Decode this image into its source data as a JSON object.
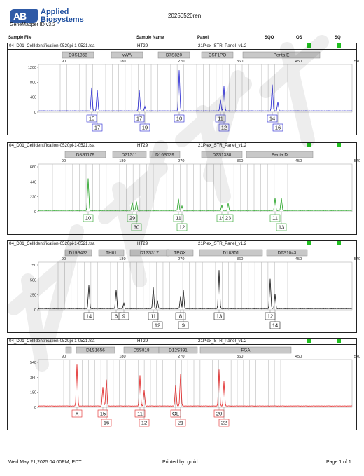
{
  "logo": {
    "line1": "Applied",
    "line2": "Biosystems",
    "mark": "AB"
  },
  "software": "GeneMapper ID v3.2",
  "doc_title": "20250520ren",
  "header_cols": {
    "sample_file": "Sample File",
    "sample_name": "Sample Name",
    "panel": "Panel",
    "sqo": "SQO",
    "os": "OS",
    "sq": "SQ"
  },
  "status_color": "#20c020",
  "panels": [
    {
      "sample_file": "04_D01_CellIdentification-0520pi-1-0521.fsa",
      "sample_name": "HT29",
      "panel": "21Plex_STR_Panel_v1.2",
      "color": "#2020d0",
      "ticks": [
        "90",
        "180",
        "270",
        "360",
        "450",
        "540"
      ],
      "yticks": [
        "1200",
        "800",
        "400",
        "0"
      ],
      "markers": [
        "D3S1358",
        "vWA",
        "D7S820",
        "CSF1PO",
        "Penta E"
      ],
      "alleles": [
        {
          "label": "15",
          "row": 1
        },
        {
          "label": "17",
          "row": 2
        },
        {
          "label": "17",
          "row": 1
        },
        {
          "label": "19",
          "row": 2
        },
        {
          "label": "10",
          "row": 1
        },
        {
          "label": "11",
          "row": 1
        },
        {
          "label": "12",
          "row": 2
        },
        {
          "label": "14",
          "row": 1
        },
        {
          "label": "16",
          "row": 2
        }
      ]
    },
    {
      "sample_file": "04_D01_CellIdentification-0520pi-1-0521.fsa",
      "sample_name": "HT29",
      "panel": "21Plex_STR_Panel_v1.2",
      "color": "#20a020",
      "ticks": [
        "90",
        "180",
        "270",
        "360",
        "450",
        "540"
      ],
      "yticks": [
        "660",
        "440",
        "220",
        "0"
      ],
      "markers": [
        "D8S1179",
        "D21S11",
        "D16S539",
        "D2S1338",
        "Penta D"
      ],
      "alleles": [
        {
          "label": "10",
          "row": 1
        },
        {
          "label": "29",
          "row": 1
        },
        {
          "label": "30",
          "row": 2
        },
        {
          "label": "11",
          "row": 1
        },
        {
          "label": "12",
          "row": 2
        },
        {
          "label": "19",
          "row": 1
        },
        {
          "label": "23",
          "row": 1
        },
        {
          "label": "11",
          "row": 1
        },
        {
          "label": "13",
          "row": 2
        }
      ]
    },
    {
      "sample_file": "04_D01_CellIdentification-0520pi-1-0521.fsa",
      "sample_name": "HT29",
      "panel": "21Plex_STR_Panel_v1.2",
      "color": "#111111",
      "ticks": [
        "90",
        "180",
        "270",
        "360",
        "450",
        "540"
      ],
      "yticks": [
        "750",
        "500",
        "250",
        "0"
      ],
      "markers": [
        "D19S433",
        "TH01",
        "D13S317",
        "TPOX",
        "D18S51",
        "D6S1043"
      ],
      "alleles": [
        {
          "label": "14",
          "row": 1
        },
        {
          "label": "6",
          "row": 1
        },
        {
          "label": "9",
          "row": 1
        },
        {
          "label": "11",
          "row": 1
        },
        {
          "label": "12",
          "row": 2
        },
        {
          "label": "8",
          "row": 1
        },
        {
          "label": "9",
          "row": 2
        },
        {
          "label": "13",
          "row": 1
        },
        {
          "label": "12",
          "row": 1
        },
        {
          "label": "14",
          "row": 2
        }
      ]
    },
    {
      "sample_file": "04_D01_CellIdentification-0520pi-1-0521.fsa",
      "sample_name": "HT29",
      "panel": "21Plex_STR_Panel_v1.2",
      "color": "#e02020",
      "ticks": [
        "90",
        "180",
        "270",
        "360",
        "450",
        "540"
      ],
      "yticks": [
        "540",
        "360",
        "180",
        "0"
      ],
      "markers": [
        "",
        "D1S1656",
        "D5S818",
        "D12S391",
        "FGA"
      ],
      "alleles": [
        {
          "label": "X",
          "row": 1
        },
        {
          "label": "15",
          "row": 1
        },
        {
          "label": "16",
          "row": 2
        },
        {
          "label": "11",
          "row": 1
        },
        {
          "label": "12",
          "row": 2
        },
        {
          "label": "OL",
          "row": 1
        },
        {
          "label": "21",
          "row": 2
        },
        {
          "label": "20",
          "row": 1
        },
        {
          "label": "22",
          "row": 2
        }
      ]
    }
  ],
  "footer": {
    "date": "Wed May 21,2025 04:00PM, PDT",
    "printed_by": "Printed by: gmid",
    "page": "Page 1 of 1"
  }
}
